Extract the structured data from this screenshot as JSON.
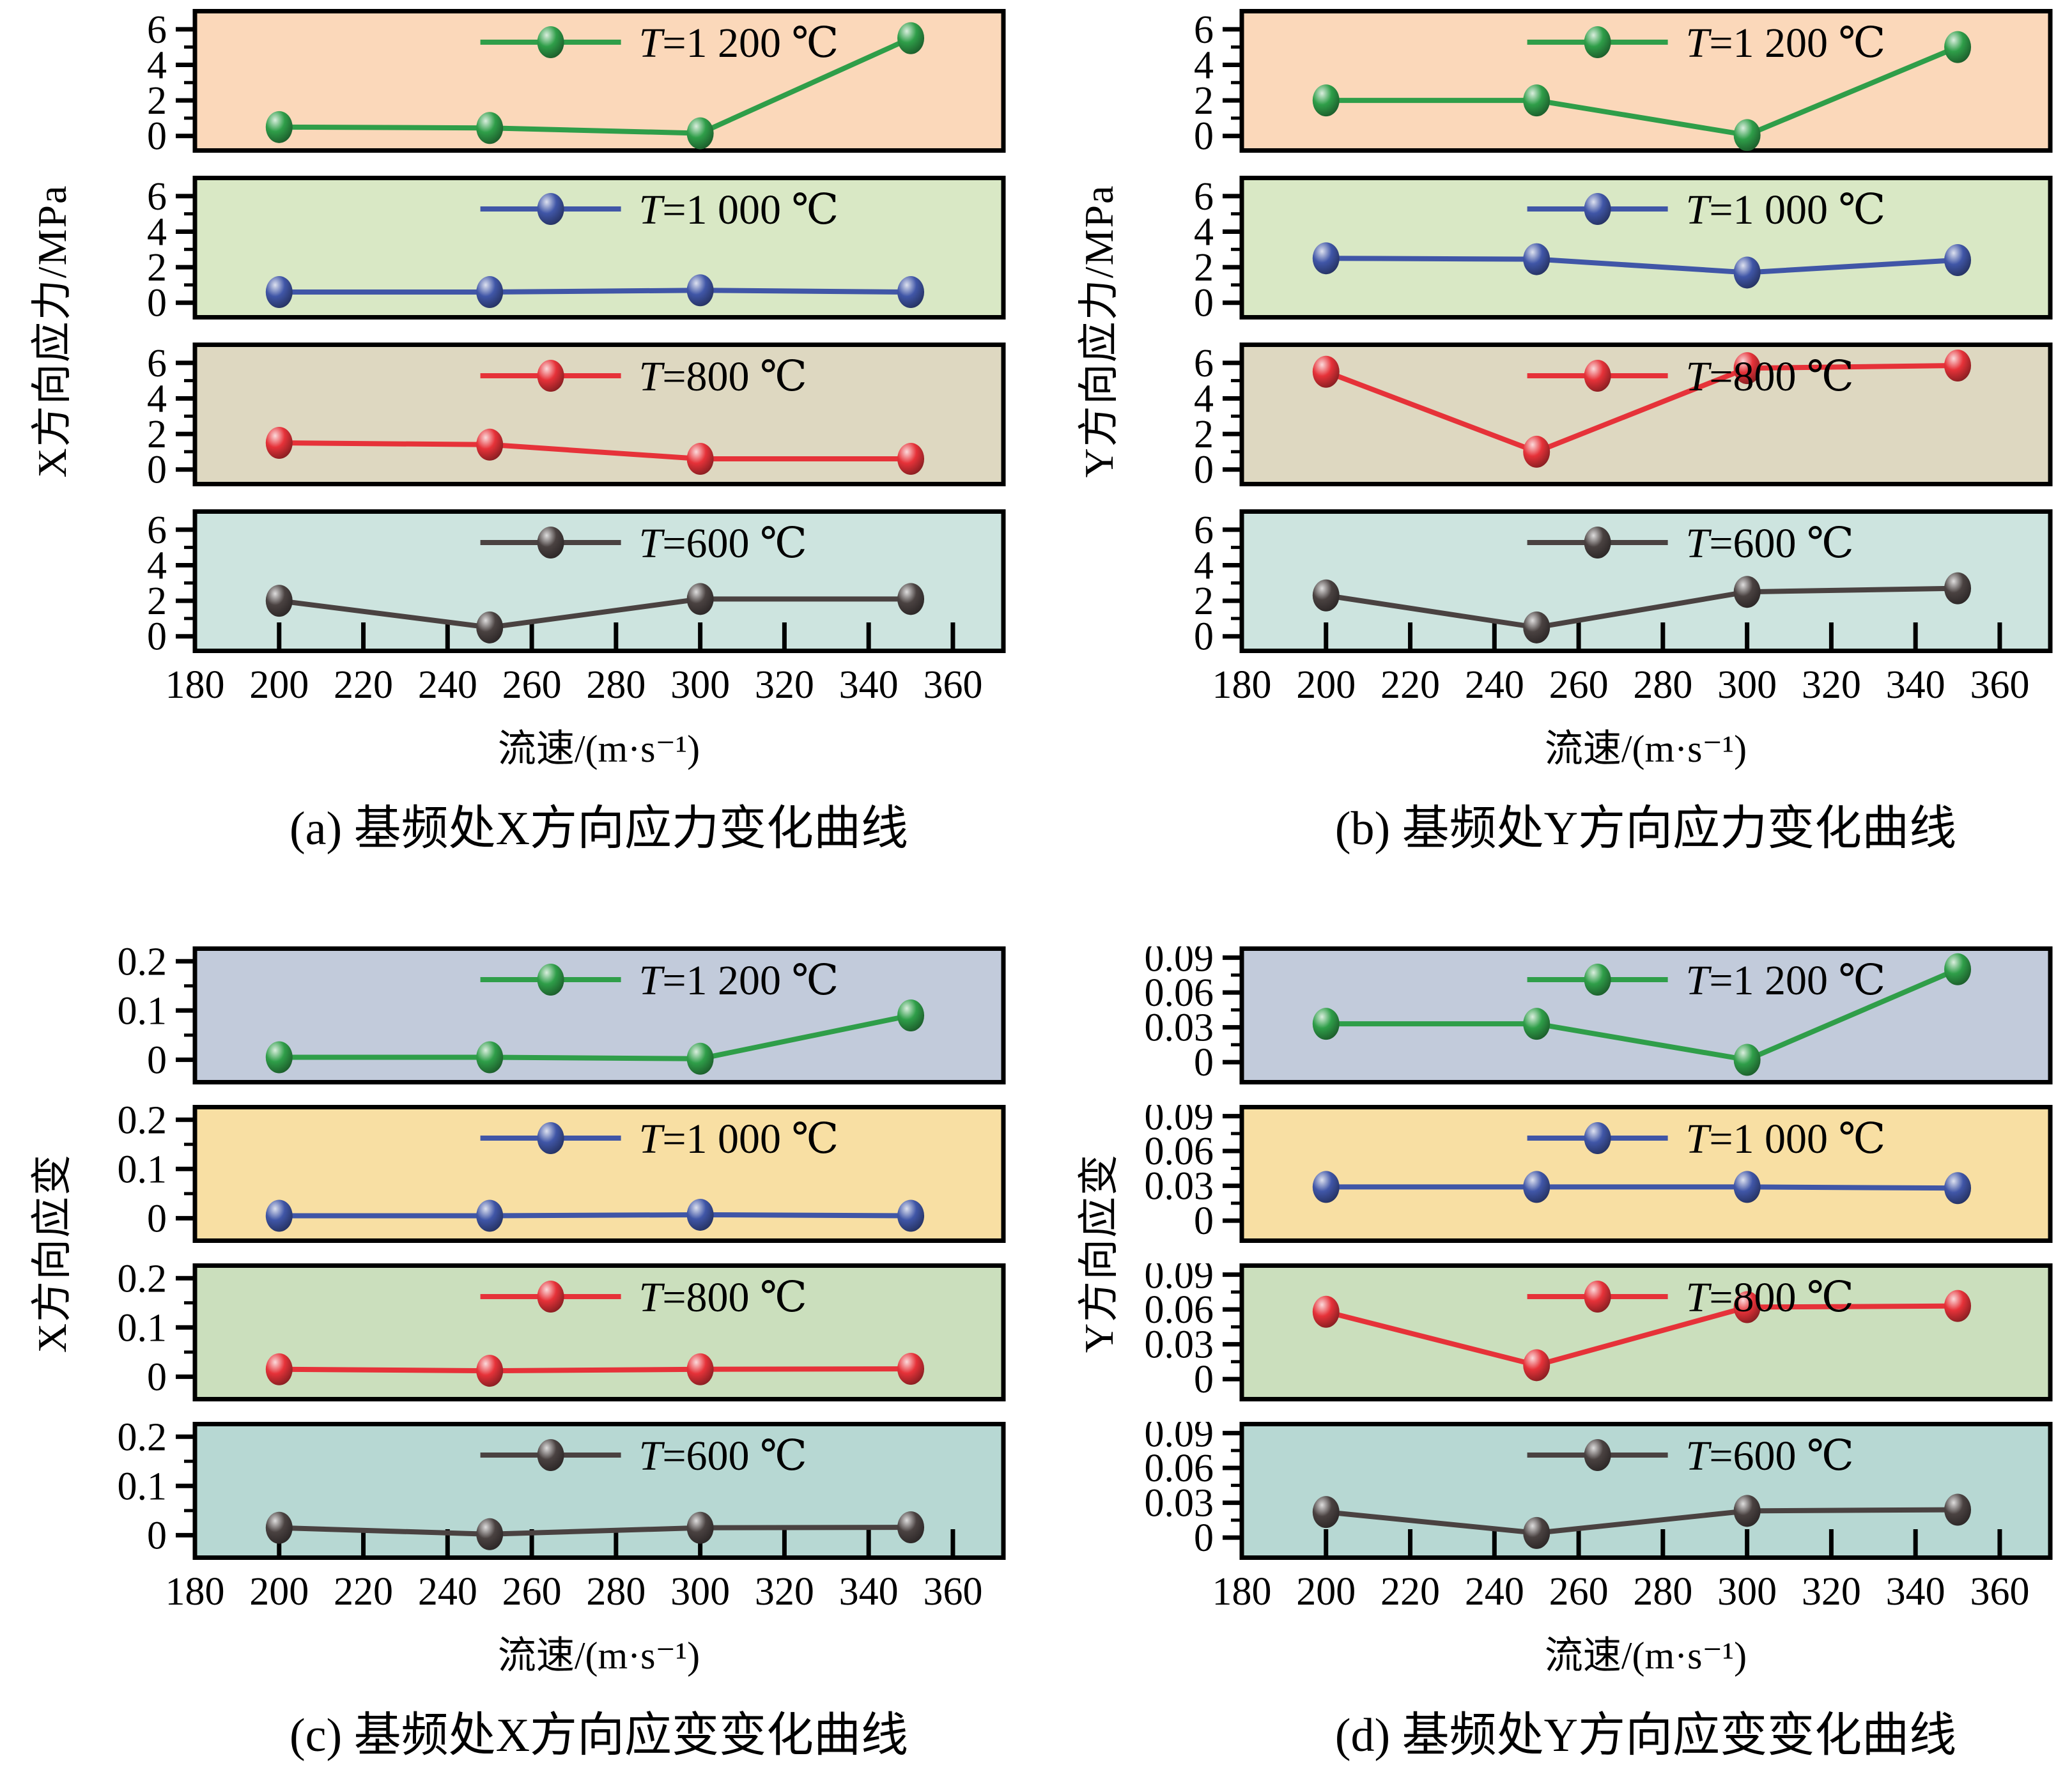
{
  "chart_data": [
    {
      "id": "a",
      "type": "line",
      "title": "(a) 基频处X方向应力变化曲线",
      "xlabel": "流速/(m·s⁻¹)",
      "ylabel": "X方向应力/MPa",
      "x": [
        200,
        250,
        300,
        350
      ],
      "xlim": [
        180,
        372
      ],
      "xticks": [
        180,
        200,
        220,
        240,
        260,
        280,
        300,
        320,
        340,
        360
      ],
      "ylim": [
        -0.8,
        7.0
      ],
      "yticks": [
        0,
        2,
        4,
        6
      ],
      "ytick_labels": [
        "0",
        "2",
        "4",
        "6"
      ],
      "yminor": [
        1,
        3,
        5
      ],
      "legend_position": "top-center",
      "grid": false,
      "series": [
        {
          "name": "T=1 200 ℃",
          "color": "#2f9e49",
          "bg": "#fbd8ba",
          "values": [
            0.5,
            0.45,
            0.15,
            5.5
          ]
        },
        {
          "name": "T=1 000 ℃",
          "color": "#4056a7",
          "bg": "#d9e8c5",
          "values": [
            0.6,
            0.6,
            0.7,
            0.6
          ]
        },
        {
          "name": "T=800 ℃",
          "color": "#e63239",
          "bg": "#ded8c1",
          "values": [
            1.5,
            1.4,
            0.6,
            0.6
          ]
        },
        {
          "name": "T=600 ℃",
          "color": "#4a4241",
          "bg": "#cde4df",
          "values": [
            2.0,
            0.5,
            2.1,
            2.1
          ]
        }
      ]
    },
    {
      "id": "b",
      "type": "line",
      "title": "(b) 基频处Y方向应力变化曲线",
      "xlabel": "流速/(m·s⁻¹)",
      "ylabel": "Y方向应力/MPa",
      "x": [
        200,
        250,
        300,
        350
      ],
      "xlim": [
        180,
        372
      ],
      "xticks": [
        180,
        200,
        220,
        240,
        260,
        280,
        300,
        320,
        340,
        360
      ],
      "ylim": [
        -0.8,
        7.0
      ],
      "yticks": [
        0,
        2,
        4,
        6
      ],
      "ytick_labels": [
        "0",
        "2",
        "4",
        "6"
      ],
      "yminor": [
        1,
        3,
        5
      ],
      "legend_position": "top-center",
      "grid": false,
      "series": [
        {
          "name": "T=1 200 ℃",
          "color": "#2f9e49",
          "bg": "#fbd8ba",
          "values": [
            2.0,
            2.0,
            0.05,
            5.0
          ]
        },
        {
          "name": "T=1 000 ℃",
          "color": "#4056a7",
          "bg": "#d9e8c5",
          "values": [
            2.5,
            2.45,
            1.7,
            2.4
          ]
        },
        {
          "name": "T=800 ℃",
          "color": "#e63239",
          "bg": "#ded8c1",
          "values": [
            5.5,
            1.0,
            5.7,
            5.85
          ]
        },
        {
          "name": "T=600 ℃",
          "color": "#4a4241",
          "bg": "#cde4df",
          "values": [
            2.3,
            0.5,
            2.5,
            2.7
          ]
        }
      ]
    },
    {
      "id": "c",
      "type": "line",
      "title": "(c) 基频处X方向应变变化曲线",
      "xlabel": "流速/(m·s⁻¹)",
      "ylabel": "X方向应变",
      "x": [
        200,
        250,
        300,
        350
      ],
      "xlim": [
        180,
        372
      ],
      "xticks": [
        180,
        200,
        220,
        240,
        260,
        280,
        300,
        320,
        340,
        360
      ],
      "ylim": [
        -0.045,
        0.225
      ],
      "yticks": [
        0,
        0.1,
        0.2
      ],
      "ytick_labels": [
        "0",
        "0.1",
        "0.2"
      ],
      "yminor": [
        0.05,
        0.15
      ],
      "legend_position": "top-center",
      "grid": false,
      "series": [
        {
          "name": "T=1 200 ℃",
          "color": "#2f9e49",
          "bg": "#c2cbdb",
          "values": [
            0.005,
            0.005,
            0.002,
            0.09
          ]
        },
        {
          "name": "T=1 000 ℃",
          "color": "#4056a7",
          "bg": "#f8dfa3",
          "values": [
            0.005,
            0.005,
            0.007,
            0.005
          ]
        },
        {
          "name": "T=800 ℃",
          "color": "#e63239",
          "bg": "#cbdfbd",
          "values": [
            0.015,
            0.012,
            0.015,
            0.016
          ]
        },
        {
          "name": "T=600 ℃",
          "color": "#4a4241",
          "bg": "#b7d8d3",
          "values": [
            0.015,
            0.002,
            0.015,
            0.016
          ]
        }
      ]
    },
    {
      "id": "d",
      "type": "line",
      "title": "(d) 基频处Y方向应变变化曲线",
      "xlabel": "流速/(m·s⁻¹)",
      "ylabel": "Y方向应变",
      "x": [
        200,
        250,
        300,
        350
      ],
      "xlim": [
        180,
        372
      ],
      "xticks": [
        180,
        200,
        220,
        240,
        260,
        280,
        300,
        320,
        340,
        360
      ],
      "ylim": [
        -0.017,
        0.0975
      ],
      "yticks": [
        0,
        0.03,
        0.06,
        0.09
      ],
      "ytick_labels": [
        "0",
        "0.03",
        "0.06",
        "0.09"
      ],
      "yminor": [
        0.015,
        0.045,
        0.075
      ],
      "legend_position": "top-center",
      "grid": false,
      "series": [
        {
          "name": "T=1 200 ℃",
          "color": "#2f9e49",
          "bg": "#c2cbdb",
          "values": [
            0.033,
            0.033,
            0.002,
            0.08
          ]
        },
        {
          "name": "T=1 000 ℃",
          "color": "#4056a7",
          "bg": "#f8dfa3",
          "values": [
            0.029,
            0.029,
            0.029,
            0.028
          ]
        },
        {
          "name": "T=800 ℃",
          "color": "#e63239",
          "bg": "#cbdfbd",
          "values": [
            0.058,
            0.012,
            0.062,
            0.063
          ]
        },
        {
          "name": "T=600 ℃",
          "color": "#4a4241",
          "bg": "#b7d8d3",
          "values": [
            0.022,
            0.004,
            0.023,
            0.024
          ]
        }
      ]
    }
  ]
}
